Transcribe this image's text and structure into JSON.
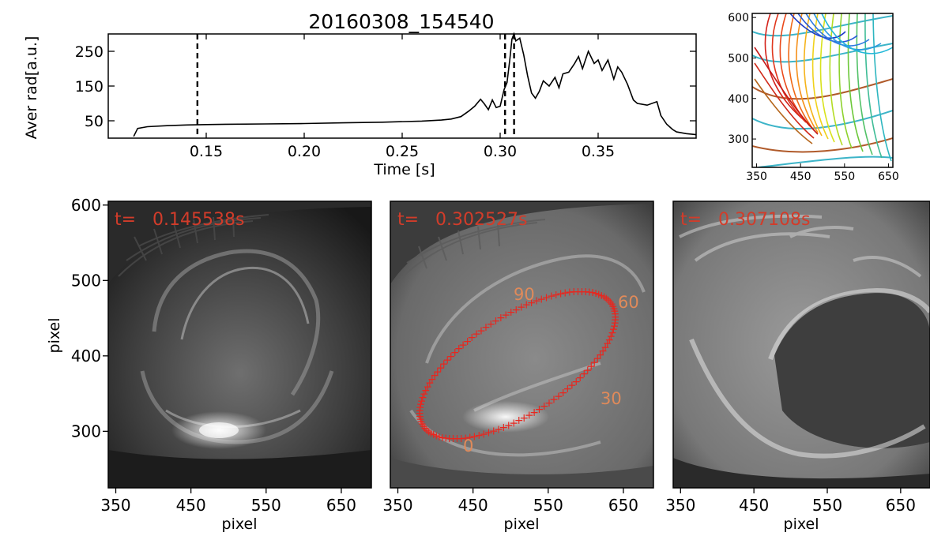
{
  "chart_data": [
    {
      "type": "line",
      "title": "20160308_154540",
      "xlabel": "Time [s]",
      "ylabel": "Aver rad[a.u.]",
      "xlim": [
        0.1,
        0.4
      ],
      "ylim": [
        0,
        300
      ],
      "xticks": [
        "0.15",
        "0.20",
        "0.25",
        "0.30",
        "0.35"
      ],
      "xtick_values": [
        0.15,
        0.2,
        0.25,
        0.3,
        0.35
      ],
      "yticks": [
        "50",
        "150",
        "250"
      ],
      "ytick_values": [
        50,
        150,
        250
      ],
      "vlines": [
        0.1455,
        0.3025,
        0.3071
      ],
      "series": [
        {
          "x": [
            0.113,
            0.115,
            0.12,
            0.13,
            0.14,
            0.15,
            0.16,
            0.18,
            0.2,
            0.22,
            0.24,
            0.26,
            0.27,
            0.275,
            0.28,
            0.284,
            0.287,
            0.29,
            0.292,
            0.294,
            0.296,
            0.298,
            0.3,
            0.302,
            0.3035,
            0.305,
            0.306,
            0.307,
            0.308,
            0.31,
            0.312,
            0.314,
            0.316,
            0.318,
            0.32,
            0.322,
            0.325,
            0.328,
            0.33,
            0.332,
            0.335,
            0.338,
            0.34,
            0.342,
            0.345,
            0.348,
            0.35,
            0.352,
            0.355,
            0.358,
            0.36,
            0.362,
            0.365,
            0.368,
            0.37,
            0.375,
            0.38,
            0.382,
            0.385,
            0.388,
            0.39,
            0.395,
            0.4
          ],
          "y": [
            5,
            28,
            33,
            36,
            38,
            39,
            40,
            41,
            42,
            44,
            46,
            49,
            52,
            55,
            62,
            78,
            92,
            112,
            98,
            82,
            110,
            88,
            92,
            140,
            160,
            230,
            285,
            300,
            280,
            288,
            240,
            180,
            130,
            115,
            135,
            165,
            150,
            175,
            145,
            185,
            190,
            215,
            235,
            200,
            250,
            215,
            225,
            195,
            225,
            170,
            205,
            190,
            155,
            110,
            100,
            95,
            105,
            65,
            40,
            25,
            18,
            13,
            10
          ]
        }
      ]
    },
    {
      "type": "line",
      "xlim": [
        340,
        660
      ],
      "ylim": [
        230,
        610
      ],
      "xticks": [
        "350",
        "450",
        "550",
        "650"
      ],
      "xtick_values": [
        350,
        450,
        550,
        650
      ],
      "yticks": [
        "300",
        "400",
        "500",
        "600"
      ],
      "ytick_values": [
        300,
        400,
        500,
        600
      ]
    },
    {
      "type": "heatmap",
      "xlabel": "pixel",
      "ylabel": "pixel",
      "xlim": [
        340,
        690
      ],
      "ylim": [
        225,
        605
      ],
      "xticks": [
        "350",
        "450",
        "550",
        "650"
      ],
      "xtick_values": [
        350,
        450,
        550,
        650
      ],
      "yticks": [
        "300",
        "400",
        "500",
        "600"
      ],
      "ytick_values": [
        300,
        400,
        500,
        600
      ],
      "annotation": "t=   0.145538s"
    },
    {
      "type": "heatmap",
      "xlabel": "pixel",
      "xlim": [
        340,
        690
      ],
      "ylim": [
        225,
        605
      ],
      "xticks": [
        "350",
        "450",
        "550",
        "650"
      ],
      "xtick_values": [
        350,
        450,
        550,
        650
      ],
      "annotation": "t=   0.302527s",
      "contour_labels": [
        "0",
        "30",
        "60",
        "90"
      ]
    },
    {
      "type": "heatmap",
      "xlabel": "pixel",
      "xlim": [
        340,
        690
      ],
      "ylim": [
        225,
        605
      ],
      "xticks": [
        "350",
        "450",
        "550",
        "650"
      ],
      "xtick_values": [
        350,
        450,
        550,
        650
      ],
      "annotation": "t=   0.307108s"
    }
  ]
}
